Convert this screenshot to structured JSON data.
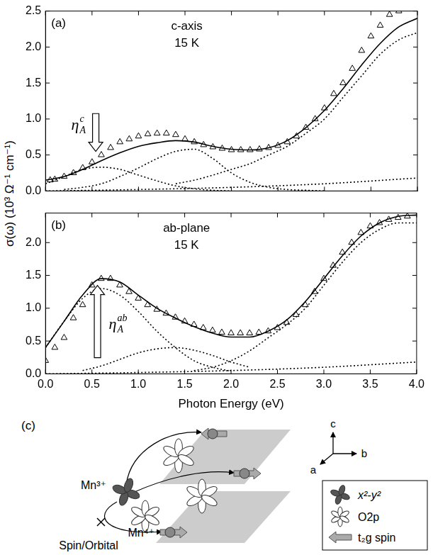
{
  "y_label": "σ(ω) (10³ Ω⁻¹ cm⁻¹)",
  "chart_data": [
    {
      "type": "scatter",
      "panel_label": "(a)",
      "annotations": [
        "c-axis",
        "15 K"
      ],
      "arrow_label": {
        "text": "η",
        "sub": "A",
        "sup": "c"
      },
      "xlim": [
        0,
        4
      ],
      "xticks": [
        {
          "value": 0,
          "label": "0.0"
        },
        {
          "value": 0.5,
          "label": "0.5"
        },
        {
          "value": 1,
          "label": "1.0"
        },
        {
          "value": 1.5,
          "label": "1.5"
        },
        {
          "value": 2,
          "label": "2.0"
        },
        {
          "value": 2.5,
          "label": "2.5"
        },
        {
          "value": 3,
          "label": "3.0"
        },
        {
          "value": 3.5,
          "label": "3.5"
        },
        {
          "value": 4,
          "label": "4.0"
        }
      ],
      "ylim": [
        0,
        2.5
      ],
      "yticks": [
        {
          "value": 0,
          "label": "0.0"
        },
        {
          "value": 0.5,
          "label": "0.5"
        },
        {
          "value": 1,
          "label": "1.0"
        },
        {
          "value": 1.5,
          "label": "1.5"
        },
        {
          "value": 2,
          "label": "2.0"
        },
        {
          "value": 2.5,
          "label": "2.5"
        }
      ],
      "grid": false,
      "tick_labels": "y",
      "series": [
        {
          "type": "scatter",
          "marker": "triangle",
          "color": "#000000",
          "x": [
            0.05,
            0.1,
            0.2,
            0.3,
            0.4,
            0.5,
            0.6,
            0.7,
            0.8,
            0.9,
            1.0,
            1.1,
            1.2,
            1.3,
            1.4,
            1.5,
            1.6,
            1.7,
            1.8,
            1.9,
            2.0,
            2.1,
            2.2,
            2.3,
            2.4,
            2.5,
            2.6,
            2.7,
            2.8,
            2.9,
            3.0,
            3.1,
            3.2,
            3.3,
            3.4,
            3.5,
            3.6,
            3.7,
            3.8
          ],
          "values": [
            0.15,
            0.16,
            0.2,
            0.25,
            0.32,
            0.4,
            0.5,
            0.6,
            0.68,
            0.72,
            0.76,
            0.79,
            0.8,
            0.8,
            0.78,
            0.72,
            0.68,
            0.64,
            0.61,
            0.59,
            0.57,
            0.57,
            0.57,
            0.58,
            0.6,
            0.63,
            0.68,
            0.76,
            0.88,
            1.0,
            1.15,
            1.35,
            1.5,
            1.7,
            1.95,
            2.15,
            2.3,
            2.45,
            2.5
          ]
        },
        {
          "type": "line",
          "line_style": "solid",
          "color": "#000000",
          "x": [
            0,
            0.2,
            0.4,
            0.6,
            0.8,
            1.0,
            1.2,
            1.4,
            1.6,
            1.8,
            2.0,
            2.2,
            2.4,
            2.6,
            2.8,
            3.0,
            3.2,
            3.4,
            3.6,
            3.8,
            4.0
          ],
          "values": [
            0.15,
            0.2,
            0.3,
            0.42,
            0.53,
            0.62,
            0.67,
            0.7,
            0.68,
            0.62,
            0.58,
            0.57,
            0.6,
            0.7,
            0.88,
            1.12,
            1.42,
            1.75,
            2.05,
            2.28,
            2.4
          ]
        },
        {
          "type": "line",
          "line_style": "dotted",
          "color": "#000000",
          "x": [
            0,
            0.2,
            0.4,
            0.6,
            0.8,
            1.0,
            1.2,
            1.4,
            1.6,
            1.8,
            2.0
          ],
          "values": [
            0.1,
            0.2,
            0.3,
            0.33,
            0.3,
            0.22,
            0.14,
            0.07,
            0.03,
            0.01,
            0
          ]
        },
        {
          "type": "line",
          "line_style": "dotted",
          "color": "#000000",
          "x": [
            0.2,
            0.4,
            0.6,
            0.8,
            1.0,
            1.2,
            1.4,
            1.6,
            1.8,
            2.0,
            2.2,
            2.4,
            2.6,
            2.8,
            3.0
          ],
          "values": [
            0.02,
            0.05,
            0.1,
            0.2,
            0.32,
            0.45,
            0.55,
            0.58,
            0.45,
            0.25,
            0.12,
            0.05,
            0.02,
            0.01,
            0
          ]
        },
        {
          "type": "line",
          "line_style": "dotted",
          "color": "#000000",
          "x": [
            1.4,
            1.6,
            1.8,
            2.0,
            2.2,
            2.4,
            2.6,
            2.8,
            3.0,
            3.2,
            3.4,
            3.6,
            3.8,
            4.0
          ],
          "values": [
            0.1,
            0.15,
            0.22,
            0.3,
            0.38,
            0.5,
            0.62,
            0.8,
            1.0,
            1.3,
            1.6,
            1.9,
            2.1,
            2.2
          ]
        },
        {
          "type": "line",
          "line_style": "dotted",
          "color": "#000000",
          "x": [
            0,
            1,
            2,
            3,
            4
          ],
          "values": [
            0,
            0.02,
            0.05,
            0.1,
            0.18
          ]
        }
      ]
    },
    {
      "type": "scatter",
      "panel_label": "(b)",
      "annotations": [
        "ab-plane",
        "15 K"
      ],
      "arrow_label": {
        "text": "η",
        "sub": "A",
        "sup": "ab"
      },
      "x_label": "Photon Energy (eV)",
      "xlim": [
        0,
        4
      ],
      "xticks": [
        {
          "value": 0,
          "label": "0.0"
        },
        {
          "value": 0.5,
          "label": "0.5"
        },
        {
          "value": 1,
          "label": "1.0"
        },
        {
          "value": 1.5,
          "label": "1.5"
        },
        {
          "value": 2,
          "label": "2.0"
        },
        {
          "value": 2.5,
          "label": "2.5"
        },
        {
          "value": 3,
          "label": "3.0"
        },
        {
          "value": 3.5,
          "label": "3.5"
        },
        {
          "value": 4,
          "label": "4.0"
        }
      ],
      "ylim": [
        0,
        2.45
      ],
      "yticks": [
        {
          "value": 0,
          "label": "0.0"
        },
        {
          "value": 0.5,
          "label": "0.5"
        },
        {
          "value": 1,
          "label": "1.0"
        },
        {
          "value": 1.5,
          "label": "1.5"
        },
        {
          "value": 2,
          "label": "2.0"
        }
      ],
      "grid": false,
      "series": [
        {
          "type": "scatter",
          "marker": "triangle",
          "color": "#000000",
          "x": [
            0.0,
            0.1,
            0.2,
            0.3,
            0.4,
            0.5,
            0.6,
            0.7,
            0.8,
            0.9,
            1.0,
            1.1,
            1.2,
            1.3,
            1.4,
            1.5,
            1.6,
            1.7,
            1.8,
            1.9,
            2.0,
            2.1,
            2.2,
            2.3,
            2.4,
            2.5,
            2.6,
            2.7,
            2.8,
            2.9,
            3.0,
            3.1,
            3.2,
            3.3,
            3.4,
            3.5,
            3.6,
            3.7,
            3.8,
            3.9
          ],
          "values": [
            0.2,
            0.4,
            0.55,
            0.85,
            1.05,
            1.35,
            1.45,
            1.45,
            1.35,
            1.25,
            1.15,
            1.05,
            0.98,
            0.92,
            0.86,
            0.8,
            0.75,
            0.7,
            0.66,
            0.63,
            0.62,
            0.62,
            0.62,
            0.63,
            0.65,
            0.7,
            0.78,
            0.9,
            1.05,
            1.25,
            1.45,
            1.65,
            1.85,
            2.0,
            2.15,
            2.25,
            2.3,
            2.35,
            2.38,
            2.4
          ]
        },
        {
          "type": "line",
          "line_style": "solid",
          "color": "#000000",
          "x": [
            0,
            0.2,
            0.4,
            0.6,
            0.8,
            1.0,
            1.2,
            1.4,
            1.6,
            1.8,
            2.0,
            2.2,
            2.4,
            2.6,
            2.8,
            3.0,
            3.2,
            3.4,
            3.6,
            3.8,
            4.0
          ],
          "values": [
            0.4,
            0.8,
            1.2,
            1.45,
            1.4,
            1.2,
            1.0,
            0.85,
            0.72,
            0.62,
            0.56,
            0.56,
            0.65,
            0.82,
            1.1,
            1.45,
            1.8,
            2.1,
            2.3,
            2.4,
            2.42
          ]
        },
        {
          "type": "line",
          "line_style": "dotted",
          "color": "#000000",
          "x": [
            0,
            0.2,
            0.4,
            0.6,
            0.8,
            1.0,
            1.2,
            1.4,
            1.6,
            1.8,
            2.0
          ],
          "values": [
            0.4,
            0.8,
            1.15,
            1.3,
            1.2,
            0.95,
            0.65,
            0.4,
            0.2,
            0.1,
            0.04
          ]
        },
        {
          "type": "line",
          "line_style": "dotted",
          "color": "#000000",
          "x": [
            0.4,
            0.6,
            0.8,
            1.0,
            1.2,
            1.4,
            1.6,
            1.8,
            2.0,
            2.2
          ],
          "values": [
            0.05,
            0.12,
            0.22,
            0.32,
            0.38,
            0.4,
            0.36,
            0.28,
            0.18,
            0.1
          ]
        },
        {
          "type": "line",
          "line_style": "dotted",
          "color": "#000000",
          "x": [
            1.6,
            1.8,
            2.0,
            2.2,
            2.4,
            2.6,
            2.8,
            3.0,
            3.2,
            3.4,
            3.6,
            3.8,
            4.0
          ],
          "values": [
            0.05,
            0.1,
            0.2,
            0.35,
            0.55,
            0.75,
            1.0,
            1.35,
            1.7,
            2.0,
            2.2,
            2.3,
            2.3
          ]
        },
        {
          "type": "line",
          "line_style": "dotted",
          "color": "#000000",
          "x": [
            0,
            1,
            2,
            3,
            4
          ],
          "values": [
            0,
            0.02,
            0.05,
            0.1,
            0.18
          ]
        }
      ]
    }
  ],
  "diagram": {
    "panel_label": "(c)",
    "axis_labels": [
      "c",
      "a",
      "b"
    ],
    "site_labels": [
      "Mn³⁺",
      "Mn⁴⁺"
    ],
    "legend_items": [
      "x²-y²",
      "O2p",
      "t₂g spin"
    ],
    "caption": "Spin/Orbital"
  }
}
